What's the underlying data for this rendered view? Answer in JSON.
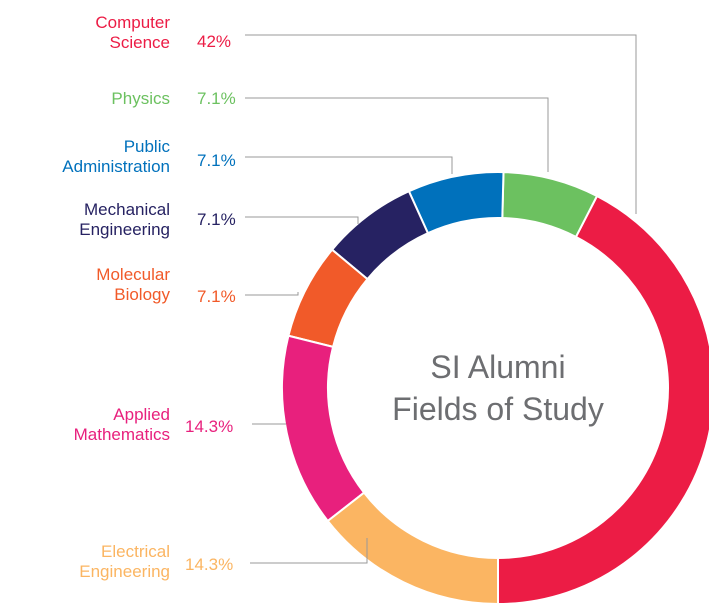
{
  "chart_data": {
    "type": "donut",
    "title": "SI Alumni Fields of Study",
    "categories": [
      "Computer Science",
      "Physics",
      "Public Administration",
      "Mechanical Engineering",
      "Molecular Biology",
      "Applied Mathematics",
      "Electrical Engineering"
    ],
    "values": [
      42,
      7.1,
      7.1,
      7.1,
      7.1,
      14.3,
      14.3
    ],
    "value_labels": [
      "42%",
      "7.1%",
      "7.1%",
      "7.1%",
      "7.1%",
      "14.3%",
      "14.3%"
    ],
    "colors": [
      "#ec1c45",
      "#6cc160",
      "#0071bc",
      "#262262",
      "#f15a29",
      "#e8207d",
      "#fbb562"
    ]
  }
}
